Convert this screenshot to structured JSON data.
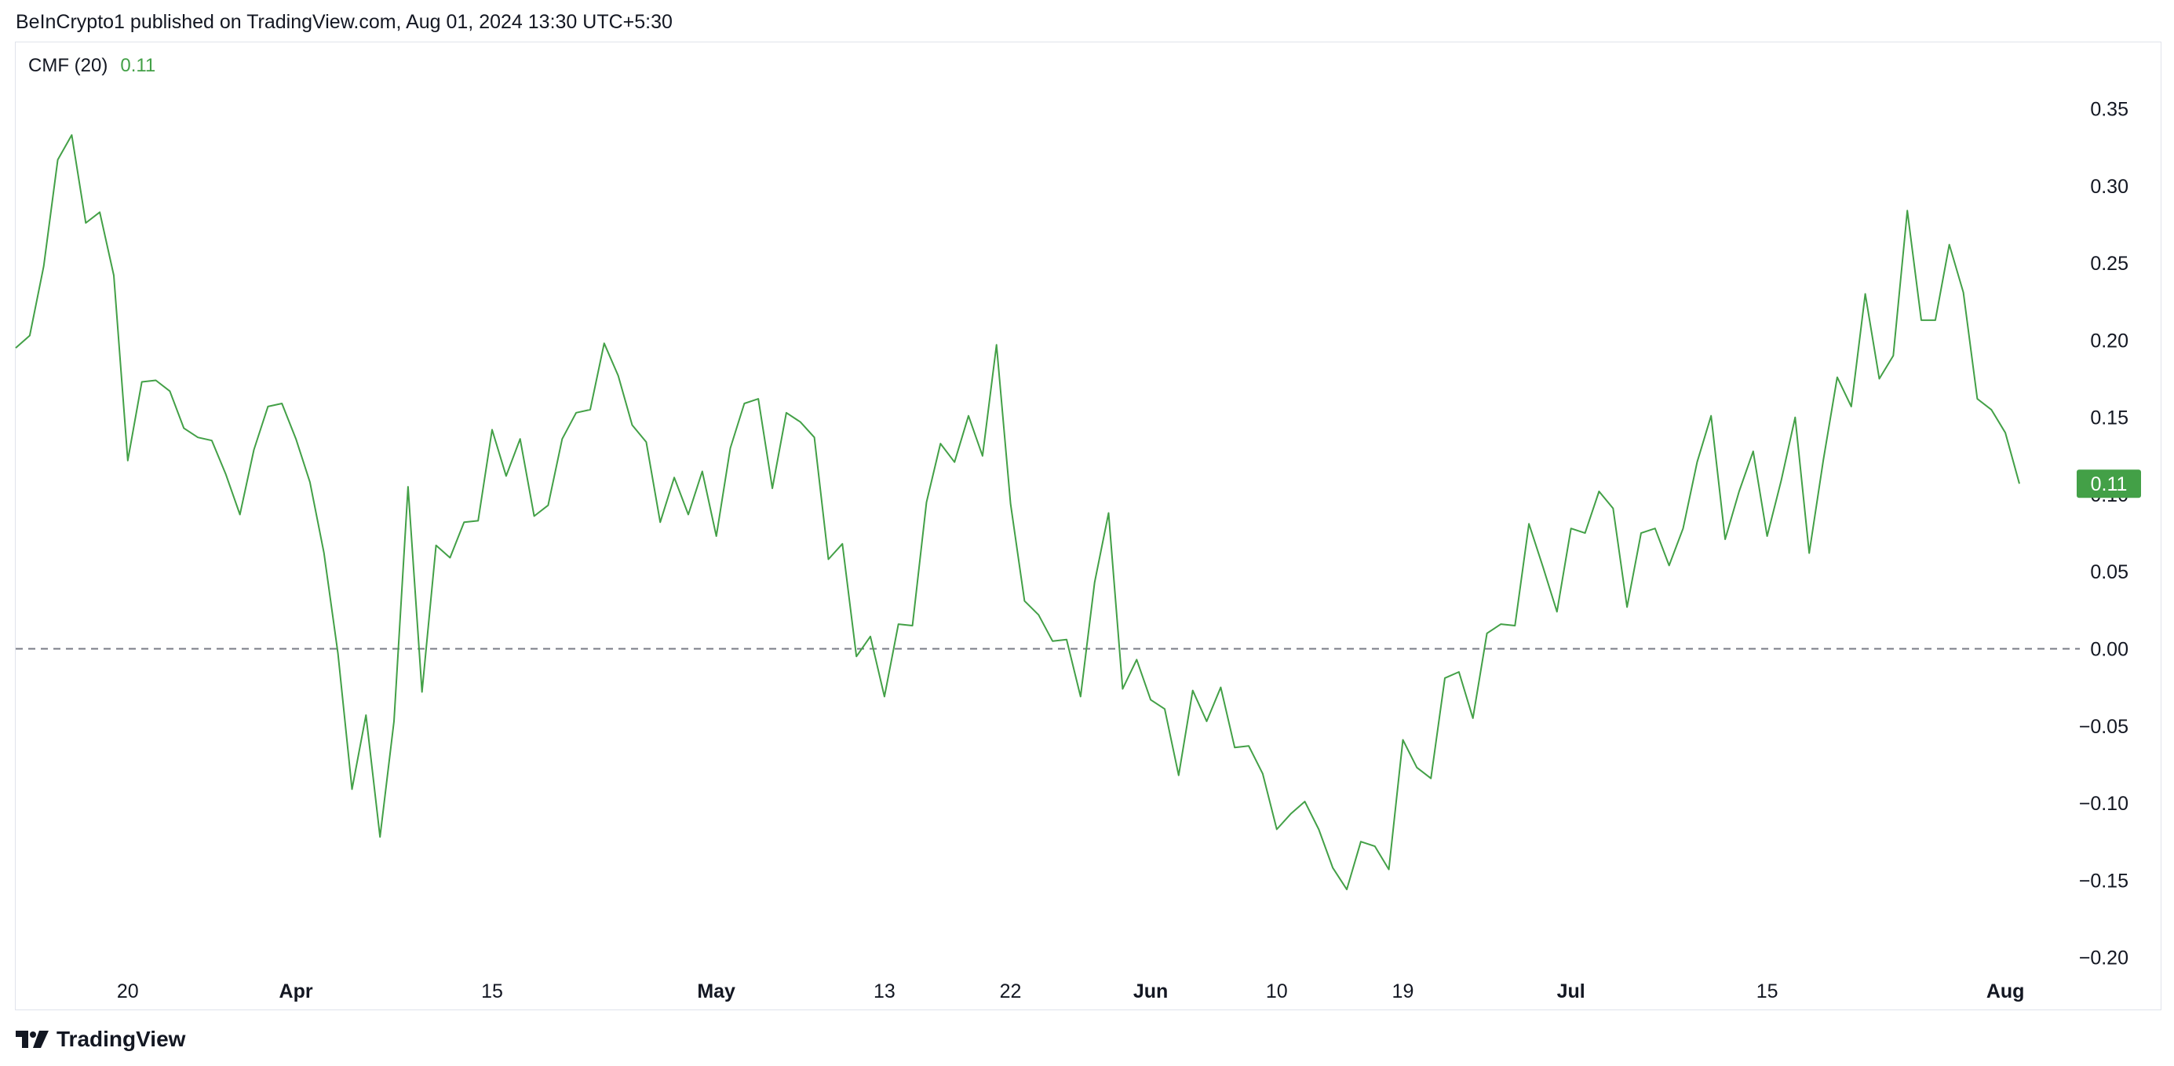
{
  "header": {
    "text": "BeInCrypto1 published on TradingView.com, Aug 01, 2024 13:30 UTC+5:30"
  },
  "legend": {
    "label": "CMF (20)",
    "value": "0.11"
  },
  "footer": {
    "brand": "TradingView"
  },
  "colors": {
    "line": "#43a047",
    "zero_line": "#787b86",
    "badge": "#43a047",
    "axis_text": "#131722"
  },
  "chart_data": {
    "type": "line",
    "title": "",
    "series": [
      {
        "name": "",
        "values": [
          0.195,
          0.203,
          0.248,
          0.317,
          0.333,
          0.276,
          0.283,
          0.242,
          0.122,
          0.173,
          0.174,
          0.167,
          0.143,
          0.137,
          0.135,
          0.113,
          0.087,
          0.129,
          0.157,
          0.159,
          0.136,
          0.108,
          0.062,
          -0.003,
          -0.091,
          -0.043,
          -0.122,
          -0.047,
          0.105,
          -0.028,
          0.067,
          0.059,
          0.082,
          0.083,
          0.142,
          0.112,
          0.136,
          0.086,
          0.093,
          0.136,
          0.153,
          0.155,
          0.198,
          0.177,
          0.145,
          0.134,
          0.082,
          0.111,
          0.087,
          0.115,
          0.073,
          0.13,
          0.159,
          0.162,
          0.104,
          0.153,
          0.147,
          0.137,
          0.058,
          0.068,
          -0.005,
          0.008,
          -0.031,
          0.016,
          0.015,
          0.095,
          0.133,
          0.121,
          0.151,
          0.125,
          0.197,
          0.094,
          0.031,
          0.022,
          0.005,
          0.006,
          -0.031,
          0.043,
          0.088,
          -0.026,
          -0.007,
          -0.033,
          -0.039,
          -0.082,
          -0.027,
          -0.047,
          -0.025,
          -0.064,
          -0.063,
          -0.081,
          -0.117,
          -0.107,
          -0.099,
          -0.117,
          -0.142,
          -0.156,
          -0.125,
          -0.128,
          -0.143,
          -0.059,
          -0.077,
          -0.084,
          -0.019,
          -0.015,
          -0.045,
          0.01,
          0.016,
          0.015,
          0.081,
          0.053,
          0.024,
          0.078,
          0.075,
          0.102,
          0.091,
          0.027,
          0.075,
          0.078,
          0.054,
          0.078,
          0.121,
          0.151,
          0.071,
          0.102,
          0.128,
          0.073,
          0.109,
          0.15,
          0.062,
          0.122,
          0.176,
          0.157,
          0.23,
          0.175,
          0.19,
          0.284,
          0.213,
          0.213,
          0.262,
          0.231,
          0.162,
          0.155,
          0.14,
          0.107
        ]
      }
    ],
    "x_ticks": [
      {
        "label": "20",
        "index": 8,
        "bold": false
      },
      {
        "label": "Apr",
        "index": 20,
        "bold": true
      },
      {
        "label": "15",
        "index": 34,
        "bold": false
      },
      {
        "label": "May",
        "index": 50,
        "bold": true
      },
      {
        "label": "13",
        "index": 62,
        "bold": false
      },
      {
        "label": "22",
        "index": 71,
        "bold": false
      },
      {
        "label": "Jun",
        "index": 81,
        "bold": true
      },
      {
        "label": "10",
        "index": 90,
        "bold": false
      },
      {
        "label": "19",
        "index": 99,
        "bold": false
      },
      {
        "label": "Jul",
        "index": 111,
        "bold": true
      },
      {
        "label": "15",
        "index": 125,
        "bold": false
      },
      {
        "label": "Aug",
        "index": 142,
        "bold": true
      }
    ],
    "y_ticks": [
      "0.35",
      "0.30",
      "0.25",
      "0.20",
      "0.15",
      "0.10",
      "0.05",
      "0.00",
      "−0.05",
      "−0.10",
      "−0.15",
      "−0.20"
    ],
    "y_tick_values": [
      0.35,
      0.3,
      0.25,
      0.2,
      0.15,
      0.1,
      0.05,
      0.0,
      -0.05,
      -0.1,
      -0.15,
      -0.2
    ],
    "ylim": [
      -0.215,
      0.385
    ],
    "zero_line": 0.0,
    "last_value_label": "0.11",
    "grid": false
  }
}
